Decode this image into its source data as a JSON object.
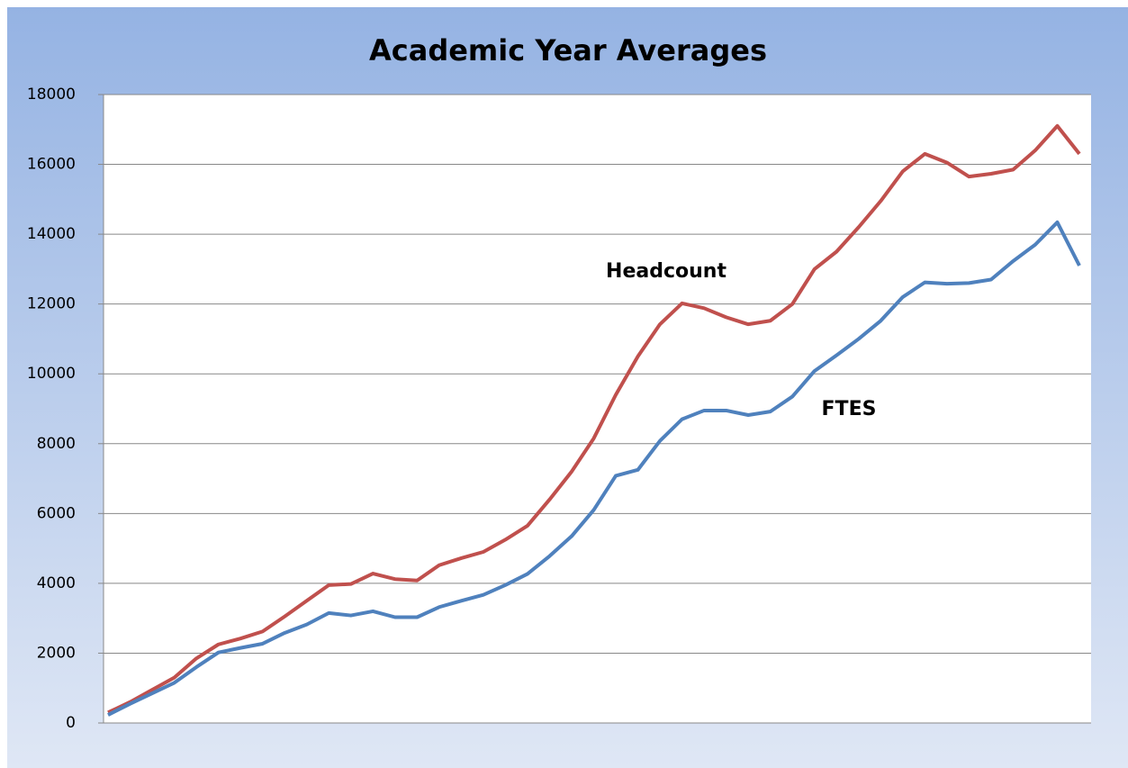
{
  "chart_data": {
    "type": "line",
    "title": "Academic Year Averages",
    "categories": [
      null,
      null,
      null,
      null,
      null,
      null,
      null,
      null,
      null,
      null,
      null,
      null,
      null,
      null,
      null,
      null,
      null,
      null,
      null,
      null,
      null,
      null,
      null,
      null,
      null,
      null,
      null,
      null,
      null,
      null,
      null,
      null,
      null,
      null,
      null,
      null,
      null,
      null,
      null,
      null,
      null,
      null,
      null,
      null,
      null
    ],
    "series": [
      {
        "name": "Headcount",
        "color": "#c0504d",
        "values": [
          300,
          600,
          950,
          1300,
          1850,
          2250,
          2420,
          2620,
          3050,
          3500,
          3950,
          3980,
          4280,
          4120,
          4080,
          4520,
          4720,
          4900,
          5250,
          5650,
          6400,
          7200,
          8150,
          9400,
          10500,
          11420,
          12020,
          11880,
          11620,
          11420,
          11520,
          12000,
          13000,
          13500,
          14200,
          14950,
          15800,
          16300,
          16050,
          15650,
          15730,
          15850,
          16400,
          17100,
          16300
        ]
      },
      {
        "name": "FTES",
        "color": "#4f81bd",
        "values": [
          230,
          550,
          850,
          1150,
          1600,
          2020,
          2150,
          2270,
          2580,
          2820,
          3150,
          3080,
          3200,
          3030,
          3030,
          3320,
          3500,
          3670,
          3950,
          4270,
          4780,
          5350,
          6100,
          7080,
          7250,
          8080,
          8700,
          8950,
          8950,
          8820,
          8920,
          9350,
          10080,
          10530,
          11000,
          11520,
          12200,
          12620,
          12580,
          12600,
          12700,
          13230,
          13700,
          14340,
          13100
        ]
      }
    ],
    "ylim": [
      0,
      18000
    ],
    "yticks": [
      0,
      2000,
      4000,
      6000,
      8000,
      10000,
      12000,
      14000,
      16000,
      18000
    ],
    "grid": true
  }
}
